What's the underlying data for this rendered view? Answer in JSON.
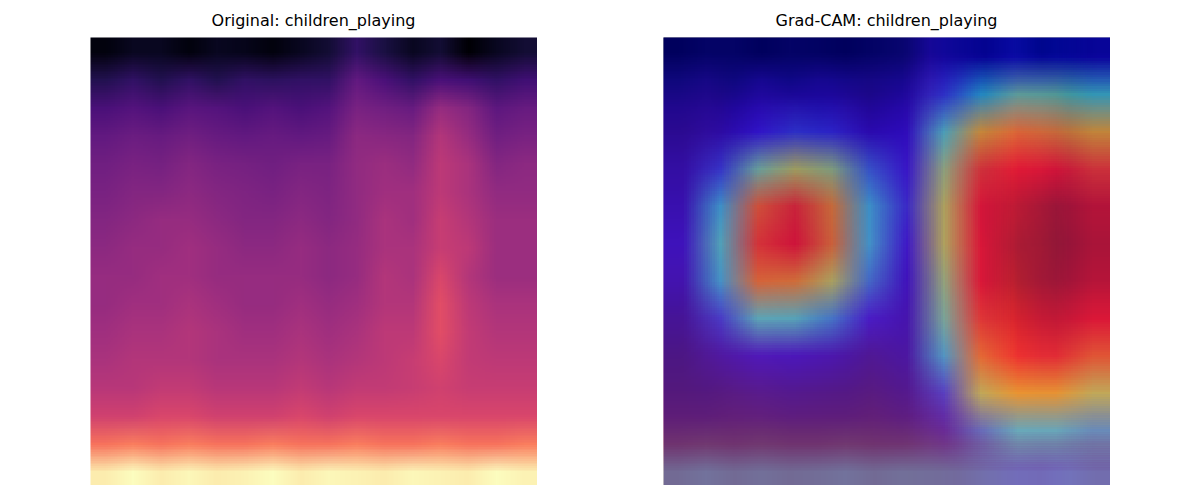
{
  "chart_data": [
    {
      "type": "heatmap",
      "title": "Original: children_playing",
      "tick_labels": false,
      "cells": [
        [
          0.12,
          0.15,
          0.15,
          0.12,
          0.15,
          0.14,
          0.12,
          0.15,
          0.18,
          0.25,
          0.2,
          0.15,
          0.18,
          0.1,
          0.15,
          0.18
        ],
        [
          0.22,
          0.25,
          0.22,
          0.25,
          0.22,
          0.25,
          0.24,
          0.25,
          0.25,
          0.35,
          0.3,
          0.25,
          0.3,
          0.28,
          0.25,
          0.28
        ],
        [
          0.3,
          0.32,
          0.3,
          0.33,
          0.32,
          0.3,
          0.32,
          0.3,
          0.32,
          0.4,
          0.38,
          0.36,
          0.46,
          0.42,
          0.34,
          0.36
        ],
        [
          0.35,
          0.37,
          0.36,
          0.38,
          0.36,
          0.35,
          0.36,
          0.35,
          0.36,
          0.44,
          0.43,
          0.42,
          0.52,
          0.46,
          0.38,
          0.4
        ],
        [
          0.38,
          0.4,
          0.39,
          0.42,
          0.4,
          0.39,
          0.38,
          0.4,
          0.4,
          0.45,
          0.47,
          0.45,
          0.54,
          0.5,
          0.42,
          0.44
        ],
        [
          0.4,
          0.42,
          0.42,
          0.44,
          0.42,
          0.41,
          0.4,
          0.42,
          0.41,
          0.45,
          0.48,
          0.48,
          0.54,
          0.5,
          0.45,
          0.45
        ],
        [
          0.42,
          0.44,
          0.46,
          0.46,
          0.44,
          0.42,
          0.42,
          0.44,
          0.42,
          0.45,
          0.5,
          0.48,
          0.56,
          0.52,
          0.47,
          0.47
        ],
        [
          0.44,
          0.46,
          0.46,
          0.48,
          0.46,
          0.44,
          0.44,
          0.46,
          0.44,
          0.46,
          0.5,
          0.5,
          0.56,
          0.54,
          0.47,
          0.47
        ],
        [
          0.46,
          0.46,
          0.48,
          0.48,
          0.46,
          0.46,
          0.46,
          0.46,
          0.44,
          0.46,
          0.52,
          0.5,
          0.6,
          0.52,
          0.47,
          0.47
        ],
        [
          0.46,
          0.48,
          0.48,
          0.5,
          0.48,
          0.46,
          0.46,
          0.48,
          0.46,
          0.48,
          0.52,
          0.52,
          0.62,
          0.54,
          0.5,
          0.5
        ],
        [
          0.48,
          0.5,
          0.5,
          0.52,
          0.5,
          0.48,
          0.48,
          0.5,
          0.48,
          0.5,
          0.54,
          0.54,
          0.62,
          0.55,
          0.52,
          0.52
        ],
        [
          0.5,
          0.52,
          0.52,
          0.52,
          0.5,
          0.5,
          0.5,
          0.52,
          0.5,
          0.52,
          0.54,
          0.56,
          0.6,
          0.55,
          0.54,
          0.54
        ],
        [
          0.53,
          0.53,
          0.55,
          0.55,
          0.53,
          0.53,
          0.53,
          0.55,
          0.53,
          0.55,
          0.55,
          0.56,
          0.58,
          0.56,
          0.56,
          0.56
        ],
        [
          0.58,
          0.58,
          0.6,
          0.6,
          0.58,
          0.58,
          0.58,
          0.6,
          0.58,
          0.6,
          0.6,
          0.6,
          0.6,
          0.6,
          0.6,
          0.6
        ],
        [
          0.7,
          0.72,
          0.7,
          0.72,
          0.7,
          0.7,
          0.72,
          0.7,
          0.7,
          0.72,
          0.7,
          0.7,
          0.72,
          0.7,
          0.7,
          0.72
        ],
        [
          0.92,
          0.95,
          0.92,
          0.94,
          0.92,
          0.93,
          0.95,
          0.92,
          0.94,
          0.93,
          0.92,
          0.94,
          0.93,
          0.92,
          0.95,
          0.93
        ]
      ]
    },
    {
      "type": "heatmap",
      "title": "Grad-CAM: children_playing",
      "tick_labels": false,
      "cells": [
        [
          0.05,
          0.05,
          0.05,
          0.05,
          0.05,
          0.05,
          0.05,
          0.1,
          0.12,
          0.15,
          0.15,
          0.12
        ],
        [
          0.05,
          0.05,
          0.08,
          0.08,
          0.08,
          0.05,
          0.08,
          0.2,
          0.35,
          0.45,
          0.45,
          0.4
        ],
        [
          0.05,
          0.08,
          0.15,
          0.2,
          0.18,
          0.1,
          0.12,
          0.4,
          0.65,
          0.72,
          0.7,
          0.65
        ],
        [
          0.08,
          0.2,
          0.45,
          0.55,
          0.5,
          0.25,
          0.15,
          0.5,
          0.8,
          0.85,
          0.85,
          0.8
        ],
        [
          0.1,
          0.35,
          0.75,
          0.82,
          0.7,
          0.35,
          0.18,
          0.55,
          0.85,
          0.92,
          0.95,
          0.9
        ],
        [
          0.12,
          0.4,
          0.8,
          0.85,
          0.72,
          0.35,
          0.15,
          0.55,
          0.85,
          0.95,
          0.97,
          0.92
        ],
        [
          0.1,
          0.35,
          0.72,
          0.7,
          0.55,
          0.28,
          0.12,
          0.5,
          0.85,
          0.95,
          0.95,
          0.9
        ],
        [
          0.06,
          0.2,
          0.4,
          0.4,
          0.3,
          0.15,
          0.1,
          0.45,
          0.8,
          0.9,
          0.9,
          0.85
        ],
        [
          0.03,
          0.08,
          0.12,
          0.12,
          0.1,
          0.06,
          0.08,
          0.35,
          0.72,
          0.82,
          0.82,
          0.75
        ],
        [
          0.02,
          0.03,
          0.05,
          0.05,
          0.04,
          0.03,
          0.05,
          0.2,
          0.55,
          0.65,
          0.65,
          0.55
        ],
        [
          0.02,
          0.02,
          0.02,
          0.02,
          0.02,
          0.02,
          0.03,
          0.08,
          0.25,
          0.35,
          0.35,
          0.3
        ],
        [
          0.02,
          0.02,
          0.02,
          0.02,
          0.02,
          0.02,
          0.02,
          0.03,
          0.05,
          0.08,
          0.08,
          0.06
        ]
      ]
    }
  ]
}
